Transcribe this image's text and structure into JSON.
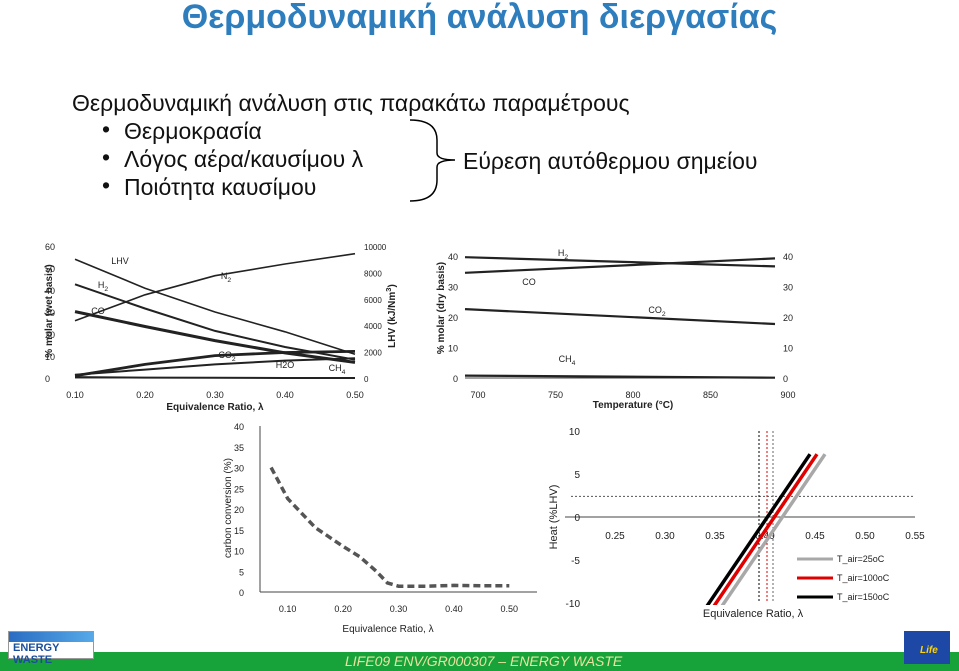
{
  "slide": {
    "title": "Θερμοδυναμική ανάλυση διεργασίας",
    "intro": "Θερμοδυναμική ανάλυση στις παρακάτω παραμέτρους",
    "bullets": [
      "Θερμοκρασία",
      "Λόγος αέρα/καυσίμου λ",
      "Ποιότητα καυσίμου"
    ],
    "bullet_glyph": "•",
    "result": "Εύρεση αυτόθερμου σημείου",
    "footer": "LIFE09 ENV/GR000307 – ENERGY WASTE",
    "logo_left": "ENERGY WASTE",
    "logo_right": "Life"
  },
  "chart_data": [
    {
      "type": "line",
      "xlabel": "Equivalence Ratio, λ",
      "ylabel": "% molar (wet basis)",
      "y2label": "LHV (kJ/Nm3)",
      "xlim": [
        0.1,
        0.5
      ],
      "ylim": [
        0,
        60
      ],
      "y2lim": [
        0,
        10000
      ],
      "xticks": [
        "0.10",
        "0.20",
        "0.30",
        "0.40",
        "0.50"
      ],
      "yticks": [
        "0",
        "10",
        "20",
        "30",
        "40",
        "50",
        "60"
      ],
      "y2ticks": [
        "0",
        "2000",
        "4000",
        "6000",
        "8000",
        "10000"
      ],
      "series": [
        {
          "name": "N2",
          "x": [
            0.1,
            0.2,
            0.3,
            0.4,
            0.5
          ],
          "y": [
            26,
            37.8,
            46.5,
            51.8,
            56.5
          ]
        },
        {
          "name": "LHV",
          "axis": "y2",
          "x": [
            0.1,
            0.2,
            0.3,
            0.4,
            0.5
          ],
          "y": [
            9000,
            6800,
            5000,
            3500,
            1800
          ]
        },
        {
          "name": "H2",
          "x": [
            0.1,
            0.2,
            0.3,
            0.4,
            0.5
          ],
          "y": [
            42.6,
            31.6,
            21.4,
            14.1,
            8.3
          ]
        },
        {
          "name": "CO",
          "x": [
            0.1,
            0.2,
            0.3,
            0.4,
            0.5
          ],
          "y": [
            30.2,
            23.4,
            17,
            11.4,
            7.1
          ]
        },
        {
          "name": "CO2",
          "x": [
            0.1,
            0.2,
            0.3,
            0.4,
            0.5
          ],
          "y": [
            1,
            6.2,
            10.2,
            11.6,
            12.1
          ]
        },
        {
          "name": "H2O",
          "x": [
            0.1,
            0.2,
            0.3,
            0.4,
            0.5
          ],
          "y": [
            1.5,
            3.8,
            6.2,
            7.9,
            9
          ]
        },
        {
          "name": "CH4",
          "x": [
            0.1,
            0.2,
            0.3,
            0.4,
            0.5
          ],
          "y": [
            0.4,
            0.2,
            0.1,
            0,
            0
          ]
        }
      ]
    },
    {
      "type": "line",
      "xlabel": "Temperature (°C)",
      "ylabel": "% molar (dry basis)",
      "xlim": [
        700,
        900
      ],
      "ylim": [
        0,
        40
      ],
      "y2lim": [
        0,
        40
      ],
      "xticks": [
        "700",
        "750",
        "800",
        "850",
        "900"
      ],
      "yticks": [
        "0",
        "10",
        "20",
        "30",
        "40"
      ],
      "y2ticks": [
        "0",
        "10",
        "20",
        "30",
        "40"
      ],
      "series": [
        {
          "name": "H2",
          "x": [
            700,
            900
          ],
          "y": [
            34.5,
            39.2
          ]
        },
        {
          "name": "CO",
          "x": [
            700,
            900
          ],
          "y": [
            39.6,
            36.6
          ]
        },
        {
          "name": "CO2",
          "x": [
            700,
            900
          ],
          "y": [
            22.6,
            17.7
          ]
        },
        {
          "name": "CH4",
          "x": [
            700,
            900
          ],
          "y": [
            0.8,
            0.1
          ]
        }
      ]
    },
    {
      "type": "line",
      "xlabel": "Equivalence Ratio, λ",
      "ylabel": "carbon conversion (%)",
      "xlim": [
        0.05,
        0.55
      ],
      "ylim": [
        0,
        40
      ],
      "xticks": [
        "0.10",
        "0.20",
        "0.30",
        "0.40",
        "0.50"
      ],
      "yticks": [
        "0",
        "5",
        "10",
        "15",
        "20",
        "25",
        "30",
        "35",
        "40"
      ],
      "series": [
        {
          "name": "",
          "x": [
            0.07,
            0.1,
            0.15,
            0.2,
            0.23,
            0.26,
            0.28,
            0.3,
            0.35,
            0.4,
            0.45,
            0.5
          ],
          "y": [
            30,
            22.5,
            15.5,
            11,
            8.5,
            5,
            2.2,
            1.4,
            1.4,
            1.6,
            1.5,
            1.5
          ]
        }
      ]
    },
    {
      "type": "line",
      "xlabel": "Equivalence Ratio, λ",
      "ylabel": "Heat (%LHV)",
      "xlim": [
        0.2,
        0.55
      ],
      "ylim": [
        -10,
        10
      ],
      "xticks": [
        "0.25",
        "0.30",
        "0.35",
        "0.40",
        "0.45",
        "0.50",
        "0.55"
      ],
      "yticks": [
        "-10",
        "-5",
        "0",
        "5",
        "10"
      ],
      "series": [
        {
          "name": "T_air=25oC",
          "x": [
            0.355,
            0.46
          ],
          "y": [
            -10.7,
            7.3
          ]
        },
        {
          "name": "T_air=100oC",
          "x": [
            0.347,
            0.452
          ],
          "y": [
            -10.7,
            7.3
          ]
        },
        {
          "name": "T_air=150oC",
          "x": [
            0.34,
            0.445
          ],
          "y": [
            -10.7,
            7.3
          ]
        }
      ],
      "reference_lines": {
        "x": [
          0.394,
          0.402,
          0.408
        ],
        "y": [
          2.4
        ]
      },
      "colors": {
        "T_air=25oC": "#a8a8a8",
        "T_air=100oC": "#e00000",
        "T_air=150oC": "#000000"
      }
    }
  ]
}
